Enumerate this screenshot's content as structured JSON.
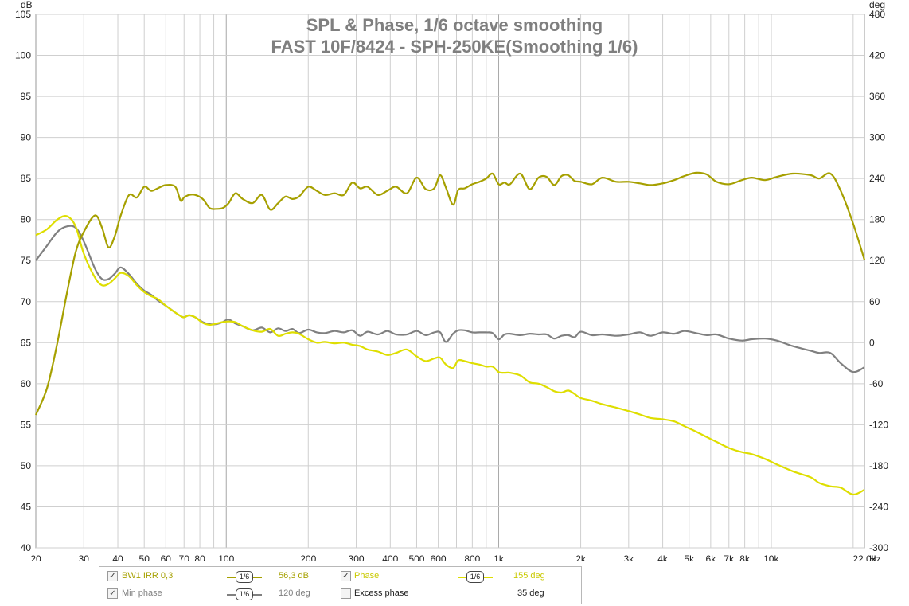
{
  "chart_data": {
    "type": "line",
    "title": "SPL & Phase, 1/6 octave smoothing",
    "subtitle": "FAST 10F/8424 - SPH-250KE(Smoothing 1/6)",
    "x_scale": "log",
    "xlim": [
      20,
      22000
    ],
    "x_ticks": [
      {
        "v": 20,
        "label": "20"
      },
      {
        "v": 30,
        "label": "30"
      },
      {
        "v": 40,
        "label": "40"
      },
      {
        "v": 50,
        "label": "50"
      },
      {
        "v": 60,
        "label": "60"
      },
      {
        "v": 70,
        "label": "70"
      },
      {
        "v": 80,
        "label": "80"
      },
      {
        "v": 100,
        "label": "100"
      },
      {
        "v": 200,
        "label": "200"
      },
      {
        "v": 300,
        "label": "300"
      },
      {
        "v": 400,
        "label": "400"
      },
      {
        "v": 500,
        "label": "500"
      },
      {
        "v": 600,
        "label": "600"
      },
      {
        "v": 800,
        "label": "800"
      },
      {
        "v": 1000,
        "label": "1k"
      },
      {
        "v": 2000,
        "label": "2k"
      },
      {
        "v": 3000,
        "label": "3k"
      },
      {
        "v": 4000,
        "label": "4k"
      },
      {
        "v": 5000,
        "label": "5k"
      },
      {
        "v": 6000,
        "label": "6k"
      },
      {
        "v": 7000,
        "label": "7k"
      },
      {
        "v": 8000,
        "label": "8k"
      },
      {
        "v": 10000,
        "label": "10k"
      },
      {
        "v": 22000,
        "label": "22,0k"
      }
    ],
    "x_unit": "Hz",
    "ylabel_left": "dB",
    "ylim_left": [
      40,
      105
    ],
    "y_ticks_left": [
      "40",
      "45",
      "50",
      "55",
      "60",
      "65",
      "70",
      "75",
      "80",
      "85",
      "90",
      "95",
      "100",
      "105"
    ],
    "ylabel_right": "deg",
    "ylim_right": [
      -300,
      480
    ],
    "y_ticks_right": [
      "-300",
      "-240",
      "-180",
      "-120",
      "-60",
      "0",
      "60",
      "120",
      "180",
      "240",
      "300",
      "360",
      "420",
      "480"
    ],
    "grid": true,
    "series": [
      {
        "name": "BW1 IRR 0,3",
        "axis": "left",
        "color": "#a6a000",
        "x": [
          20,
          22,
          24,
          26,
          28,
          30,
          33,
          35,
          37,
          39,
          41,
          44,
          47,
          50,
          53,
          56,
          60,
          65,
          68,
          70,
          73,
          77,
          82,
          87,
          92,
          97,
          102,
          108,
          115,
          125,
          135,
          145,
          155,
          165,
          175,
          185,
          200,
          215,
          230,
          250,
          270,
          290,
          310,
          330,
          360,
          390,
          420,
          460,
          500,
          540,
          580,
          610,
          640,
          680,
          710,
          750,
          800,
          850,
          900,
          950,
          1000,
          1050,
          1100,
          1200,
          1300,
          1400,
          1500,
          1600,
          1700,
          1800,
          1900,
          2000,
          2200,
          2400,
          2700,
          3000,
          3300,
          3600,
          4000,
          4400,
          4800,
          5300,
          5800,
          6300,
          7000,
          7800,
          8500,
          9500,
          10500,
          12000,
          14000,
          15000,
          16500,
          18000,
          20000,
          22000
        ],
        "y": [
          56.2,
          59.5,
          65,
          71,
          76,
          78.5,
          80.5,
          79,
          76.6,
          78,
          80.5,
          83,
          82.7,
          84,
          83.5,
          83.8,
          84.2,
          84,
          82.3,
          82.7,
          83,
          83,
          82.5,
          81.4,
          81.3,
          81.4,
          82,
          83.2,
          82.5,
          82,
          83,
          81.2,
          82,
          82.8,
          82.5,
          82.8,
          84,
          83.5,
          83,
          83.2,
          83,
          84.5,
          83.8,
          84,
          83,
          83.5,
          84,
          83.2,
          85.1,
          83.7,
          83.8,
          85.4,
          83.9,
          81.8,
          83.6,
          83.8,
          84.3,
          84.6,
          85,
          85.6,
          84.3,
          84.5,
          84.3,
          85.6,
          83.7,
          85.1,
          85.2,
          84.2,
          85.3,
          85.4,
          84.7,
          84.6,
          84.3,
          85.1,
          84.6,
          84.6,
          84.4,
          84.2,
          84.4,
          84.8,
          85.3,
          85.7,
          85.5,
          84.6,
          84.3,
          84.8,
          85.1,
          84.8,
          85.2,
          85.6,
          85.4,
          85.0,
          85.6,
          83.5,
          79.5,
          75.1
        ]
      },
      {
        "name": "Phase",
        "axis": "right",
        "color": "#dede00",
        "x": [
          20,
          22,
          24,
          26,
          28,
          30,
          33,
          35,
          37,
          39,
          41,
          44,
          47,
          50,
          53,
          56,
          60,
          65,
          68,
          70,
          73,
          77,
          82,
          87,
          92,
          97,
          102,
          108,
          115,
          125,
          135,
          145,
          155,
          165,
          175,
          185,
          200,
          215,
          230,
          250,
          270,
          290,
          310,
          330,
          360,
          390,
          420,
          460,
          500,
          540,
          580,
          610,
          640,
          680,
          710,
          750,
          800,
          850,
          900,
          950,
          1000,
          1050,
          1100,
          1200,
          1300,
          1400,
          1500,
          1600,
          1700,
          1800,
          1900,
          2000,
          2200,
          2400,
          2700,
          3000,
          3300,
          3600,
          4000,
          4400,
          4800,
          5300,
          5800,
          6300,
          7000,
          7800,
          8500,
          9500,
          10500,
          12000,
          14000,
          15000,
          16500,
          18000,
          20000,
          22000
        ],
        "y": [
          157,
          166,
          180,
          185,
          170,
          130,
          95,
          84,
          86,
          94,
          102,
          97,
          84,
          74,
          68,
          64,
          54,
          44,
          39,
          37,
          40,
          37,
          29,
          26,
          28,
          30,
          31,
          30,
          24,
          18,
          16,
          20,
          10,
          13,
          15,
          13,
          5,
          0,
          1,
          -1,
          0,
          -3,
          -5,
          -10,
          -13,
          -18,
          -15,
          -10,
          -20,
          -27,
          -23,
          -22,
          -32,
          -37,
          -26,
          -27,
          -30,
          -32,
          -35,
          -35,
          -43,
          -44,
          -44,
          -48,
          -58,
          -60,
          -65,
          -71,
          -73,
          -70,
          -75,
          -81,
          -85,
          -90,
          -95,
          -100,
          -105,
          -110,
          -112,
          -115,
          -122,
          -130,
          -138,
          -145,
          -154,
          -160,
          -163,
          -170,
          -178,
          -188,
          -197,
          -205,
          -210,
          -212,
          -222,
          -215
        ]
      },
      {
        "name": "Min phase",
        "axis": "right",
        "color": "#808080",
        "x": [
          20,
          22,
          24,
          26,
          28,
          30,
          33,
          35,
          37,
          39,
          41,
          44,
          47,
          50,
          53,
          56,
          60,
          65,
          68,
          70,
          73,
          77,
          82,
          87,
          92,
          97,
          102,
          108,
          115,
          125,
          135,
          145,
          155,
          165,
          175,
          185,
          200,
          215,
          230,
          250,
          270,
          290,
          310,
          330,
          360,
          390,
          420,
          460,
          500,
          540,
          580,
          610,
          640,
          680,
          710,
          750,
          800,
          850,
          900,
          950,
          1000,
          1050,
          1100,
          1200,
          1300,
          1400,
          1500,
          1600,
          1700,
          1800,
          1900,
          2000,
          2200,
          2400,
          2700,
          3000,
          3300,
          3600,
          4000,
          4400,
          4800,
          5300,
          5800,
          6300,
          7000,
          7800,
          8500,
          9500,
          10500,
          12000,
          14000,
          15000,
          16500,
          18000,
          20000,
          22000
        ],
        "y": [
          120,
          142,
          162,
          170,
          168,
          148,
          108,
          93,
          93,
          101,
          110,
          100,
          86,
          76,
          70,
          62,
          54,
          44,
          39,
          37,
          40,
          37,
          30,
          27,
          27,
          30,
          34,
          28,
          24,
          18,
          22,
          15,
          21,
          17,
          20,
          14,
          19,
          15,
          14,
          17,
          15,
          18,
          10,
          16,
          12,
          17,
          12,
          12,
          17,
          11,
          15,
          15,
          1,
          13,
          18,
          18,
          15,
          15,
          15,
          14,
          5,
          12,
          13,
          11,
          13,
          12,
          12,
          6,
          10,
          11,
          8,
          16,
          11,
          12,
          10,
          12,
          15,
          10,
          15,
          13,
          17,
          14,
          11,
          12,
          6,
          3,
          5,
          6,
          3,
          -5,
          -12,
          -15,
          -15,
          -30,
          -43,
          -36
        ]
      }
    ]
  },
  "legend": {
    "rows": [
      {
        "check": "✓",
        "name": "BW1 IRR 0,3",
        "smooth": "1/6",
        "value": "56,3 dB",
        "color": "#a6a000"
      },
      {
        "check": "✓",
        "name": "Phase",
        "smooth": "1/6",
        "value": "155 deg",
        "color": "#dede00"
      },
      {
        "check": "✓",
        "name": "Min phase",
        "smooth": "1/6",
        "value": "120 deg",
        "color": "#808080"
      },
      {
        "check": "",
        "name": "Excess phase",
        "value": "35 deg",
        "color": "#222222"
      }
    ]
  }
}
